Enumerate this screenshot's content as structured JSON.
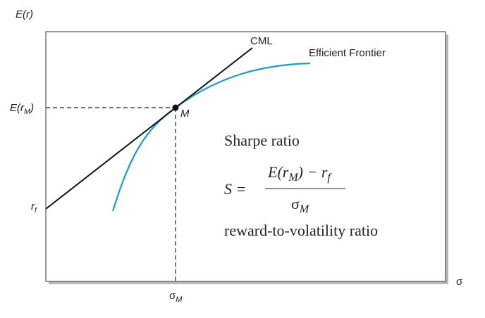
{
  "axes": {
    "y_label": "E(r)",
    "x_label": "σ"
  },
  "labels": {
    "expected_return_m": {
      "main": "E(r",
      "sub": "M",
      "close": ")"
    },
    "risk_free": {
      "main": "r",
      "sub": "f"
    },
    "sigma_m": {
      "main": "σ",
      "sub": "M"
    },
    "point": "M",
    "cml": "CML",
    "frontier": "Efficient Frontier"
  },
  "formula": {
    "title": "Sharpe ratio",
    "lhs": "S =",
    "numerator": {
      "part1": "E(r",
      "sub1": "M",
      "part2": ") − r",
      "sub2": "f"
    },
    "denominator": {
      "main": "σ",
      "sub": "M"
    },
    "caption": "reward-to-volatility ratio"
  }
}
